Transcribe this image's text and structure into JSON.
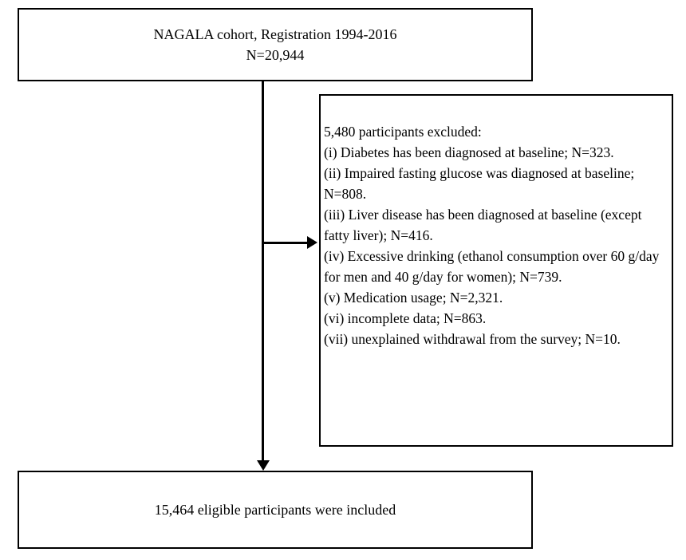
{
  "diagram": {
    "colors": {
      "border": "#000000",
      "background": "#ffffff",
      "text": "#000000"
    },
    "top_box": {
      "line1": "NAGALA  cohort, Registration 1994-2016",
      "line2": "N=20,944"
    },
    "exclusion_box": {
      "header": "5,480 participants excluded:",
      "items": [
        "(i) Diabetes has been diagnosed at baseline; N=323.",
        "(ii) Impaired fasting glucose was diagnosed at baseline; N=808.",
        "(iii) Liver disease has been diagnosed at baseline (except fatty liver); N=416.",
        "(iv) Excessive drinking (ethanol consumption over 60 g/day for men and 40 g/day for women); N=739.",
        "(v) Medication usage; N=2,321.",
        "(vi) incomplete data; N=863.",
        "(vii) unexplained withdrawal from the survey; N=10."
      ]
    },
    "bottom_box": {
      "text": "15,464 eligible participants were included"
    }
  }
}
